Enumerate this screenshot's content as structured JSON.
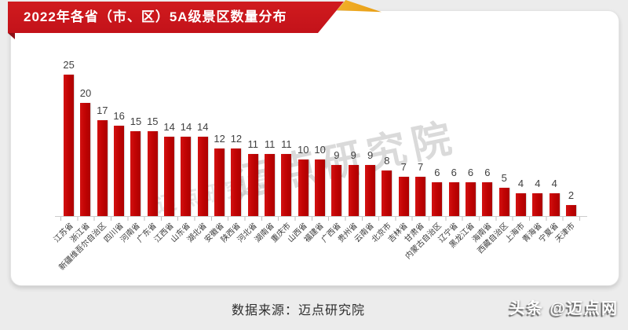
{
  "title": "2022年各省（市、区）5A级景区数量分布",
  "watermark": {
    "main": "迈点研究院",
    "secondary": "迈点研究院"
  },
  "footer": {
    "source": "数据来源：迈点研究院",
    "brand": "头条 @迈点网"
  },
  "colors": {
    "bar": "#c00000",
    "banner": "#c9161c",
    "gold_accent": "#eda71f",
    "background": "#ececec",
    "card": "#ffffff"
  },
  "chart_data": {
    "type": "bar",
    "title": "2022年各省（市、区）5A级景区数量分布",
    "categories": [
      "江苏省",
      "浙江省",
      "新疆维吾尔自治区",
      "四川省",
      "河南省",
      "广东省",
      "江西省",
      "山东省",
      "湖北省",
      "安徽省",
      "陕西省",
      "河北省",
      "湖南省",
      "重庆市",
      "山西省",
      "福建省",
      "广西省",
      "贵州省",
      "云南省",
      "北京市",
      "吉林省",
      "甘肃省",
      "内蒙古自治区",
      "辽宁省",
      "黑龙江省",
      "海南省",
      "西藏自治区",
      "上海市",
      "青海省",
      "宁夏省",
      "天津市"
    ],
    "values": [
      25,
      20,
      17,
      16,
      15,
      15,
      14,
      14,
      14,
      12,
      12,
      11,
      11,
      11,
      10,
      10,
      9,
      9,
      9,
      8,
      7,
      7,
      6,
      6,
      6,
      6,
      5,
      4,
      4,
      4,
      2
    ],
    "xlabel": "",
    "ylabel": "",
    "ylim": [
      0,
      25
    ],
    "grid": false,
    "legend": false,
    "bar_color": "#c00000",
    "value_labels": "above bars",
    "category_label_rotation": -45
  }
}
